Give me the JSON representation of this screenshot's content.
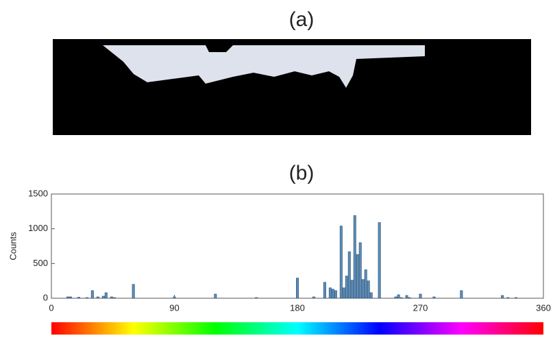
{
  "chart_data": {
    "type": "bar",
    "panel_a_title": "(a)",
    "title": "(b)",
    "y_label": "Counts",
    "color": "#5b8db8",
    "x": [
      12,
      14,
      20,
      26,
      30,
      34,
      38,
      40,
      44,
      46,
      60,
      90,
      120,
      150,
      180,
      192,
      200,
      204,
      206,
      208,
      212,
      214,
      216,
      218,
      220,
      222,
      224,
      226,
      228,
      230,
      232,
      234,
      240,
      252,
      254,
      256,
      260,
      262,
      270,
      280,
      300,
      330,
      334,
      340
    ],
    "values": [
      20,
      20,
      15,
      10,
      110,
      20,
      30,
      80,
      20,
      10,
      200,
      20,
      60,
      10,
      290,
      20,
      230,
      150,
      130,
      110,
      1040,
      150,
      320,
      670,
      260,
      1190,
      630,
      800,
      270,
      410,
      250,
      80,
      1090,
      20,
      50,
      10,
      40,
      10,
      60,
      20,
      110,
      40,
      10,
      10
    ],
    "xlim": [
      0,
      360
    ],
    "xticks": [
      0,
      90,
      180,
      270,
      360
    ],
    "ylim": [
      0,
      1500
    ],
    "yticks": [
      0,
      500,
      1000,
      1500
    ]
  }
}
